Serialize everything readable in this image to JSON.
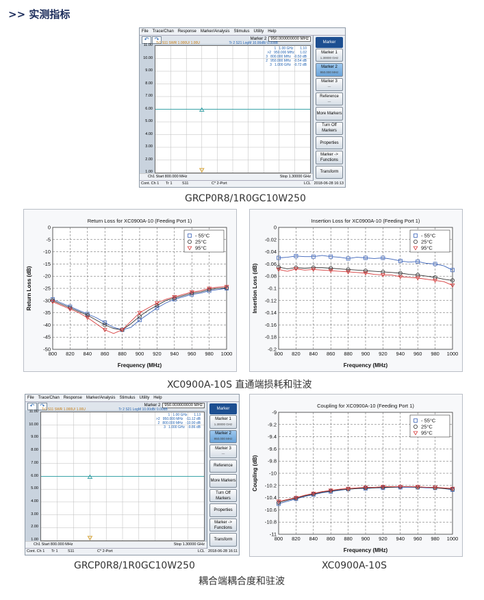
{
  "heading": ">> 实测指标",
  "vna_top": {
    "menu": [
      "File",
      "Trace/Chan",
      "Response",
      "Marker/Analysis",
      "Stimulus",
      "Utility",
      "Help"
    ],
    "marker_label": "Marker 2",
    "marker_value": "950.000000000 MHz",
    "trace1_header": "Tr1  S11 SWR 1.000U/ 1.00U",
    "trace2_header": "Tr 2  S21 LogM 10.00dB/ 0.00dB",
    "marker_table": "1   1.00 GHz       1.10\n>2   950.000 MHz      1.02\n3   800.000 MHz   -0.50 dB\n2   950.000 MHz   -0.54 dB\n3   1.000 GHz   -0.72 dB",
    "y_labels": [
      "11.00",
      "10.00",
      "9.00",
      "8.00",
      "7.00",
      "6.00",
      "5.00",
      "4.00",
      "3.00",
      "2.00",
      "1.00"
    ],
    "start": "Ch1  Start  800.000 MHz",
    "stop": "Stop  1.30000 GHz",
    "status_left": "Cont.  Ch 1",
    "status_tr": "Tr 1",
    "status_s": "S11",
    "status_port": "C* 2-Port",
    "status_lcl": "LCL",
    "status_time": "2018-06-28 16:13",
    "side_title": "Marker",
    "side_buttons": [
      {
        "label": "Marker 1",
        "sub": "1.30000 GHz"
      },
      {
        "label": "Marker 2",
        "sub": "950.000 MHz"
      },
      {
        "label": "Marker 3",
        "sub": "—"
      },
      {
        "label": "Reference",
        "sub": "—"
      },
      {
        "label": "More Markers",
        "sub": ""
      },
      {
        "label": "Turn Off Markers",
        "sub": ""
      },
      {
        "label": "Properties",
        "sub": ""
      },
      {
        "label": "Marker -> Functions",
        "sub": ""
      },
      {
        "label": "Transform",
        "sub": ""
      }
    ]
  },
  "vna_bottom": {
    "menu": [
      "File",
      "Trace/Chan",
      "Response",
      "Marker/Analysis",
      "Stimulus",
      "Utility",
      "Help"
    ],
    "marker_label": "Marker 2",
    "marker_value": "950.000000000 MHz",
    "trace1_header": "Tr1  S11 SWR 1.000U/ 1.00U",
    "trace2_header": "Tr 2  S21 LogM 10.00dB/ 0.00dB",
    "marker_table": "1   1.00 GHz       1.13\n>2   950.000 MHz   -11.12 dB\n2   800.000 MHz   -10.90 dB\n3   1.000 GHz   -9.86 dB",
    "y_labels": [
      "11.00",
      "10.00",
      "9.00",
      "8.00",
      "7.00",
      "6.00",
      "5.00",
      "4.00",
      "3.00",
      "2.00",
      "1.00"
    ],
    "start": "Ch1  Start  800.000 MHz",
    "stop": "Stop  1.30000 GHz",
    "status_left": "Cont.  Ch 1",
    "status_tr": "Tr 1",
    "status_s": "S11",
    "status_port": "C* 2-Port",
    "status_lcl": "LCL",
    "status_time": "2018-06-28 16:11",
    "side_title": "Marker",
    "side_buttons": [
      {
        "label": "Marker 1",
        "sub": "1.30000 GHz"
      },
      {
        "label": "Marker 2",
        "sub": "950.000 MHz"
      },
      {
        "label": "Marker 3",
        "sub": "—"
      },
      {
        "label": "Reference",
        "sub": ""
      },
      {
        "label": "More Markers",
        "sub": ""
      },
      {
        "label": "Turn Off Markers",
        "sub": ""
      },
      {
        "label": "Properties",
        "sub": ""
      },
      {
        "label": "Marker -> Functions",
        "sub": ""
      },
      {
        "label": "Transform",
        "sub": ""
      }
    ]
  },
  "captions": {
    "top": "GRCP0R8/1R0GC10W250",
    "middle": "XC0900A-10S 直通端损耗和驻波",
    "bottom_left": "GRCP0R8/1R0GC10W250",
    "bottom_right": "XC0900A-10S",
    "bottom_center": "耦合端耦合度和驻波"
  },
  "colors": {
    "blue": "#3a62b8",
    "black": "#333333",
    "red": "#d63a3a",
    "vna_trace": "#3aa3a8",
    "heading": "#1a2b5a"
  },
  "chart_data": [
    {
      "type": "line",
      "title": "Return Loss for XC0900A-10 (Feeding Port 1)",
      "xlabel": "Frequency (MHz)",
      "ylabel": "Return Loss (dB)",
      "xlim": [
        800,
        1000
      ],
      "ylim": [
        -50,
        0
      ],
      "xticks": [
        800,
        820,
        840,
        860,
        880,
        900,
        920,
        940,
        960,
        980,
        1000
      ],
      "yticks": [
        0,
        -5,
        -10,
        -15,
        -20,
        -25,
        -30,
        -35,
        -40,
        -45,
        -50
      ],
      "legend_position": "top-right",
      "grid": true,
      "x": [
        800,
        810,
        820,
        830,
        840,
        850,
        860,
        870,
        880,
        890,
        900,
        910,
        920,
        930,
        940,
        950,
        960,
        970,
        980,
        990,
        1000
      ],
      "series": [
        {
          "name": "- 55°C",
          "color": "#3a62b8",
          "marker": "square",
          "values": [
            -29.5,
            -31,
            -32.5,
            -34,
            -35.5,
            -37,
            -39,
            -41,
            -42,
            -41,
            -38,
            -35.5,
            -33,
            -31,
            -29.5,
            -28.5,
            -27.5,
            -27,
            -26,
            -25.5,
            -25
          ]
        },
        {
          "name": "25°C",
          "color": "#333333",
          "marker": "circle",
          "values": [
            -30,
            -31.5,
            -33,
            -34.5,
            -36,
            -38,
            -40,
            -41.5,
            -42,
            -39.5,
            -36.5,
            -34,
            -32,
            -30,
            -29,
            -28,
            -27,
            -26.5,
            -25.5,
            -25,
            -24.8
          ]
        },
        {
          "name": "95°C",
          "color": "#d63a3a",
          "marker": "triangle",
          "values": [
            -30.5,
            -32,
            -33.5,
            -35,
            -37,
            -39.5,
            -42,
            -43.5,
            -42,
            -38.5,
            -35,
            -33,
            -31,
            -29.5,
            -28.5,
            -27.5,
            -26.5,
            -26,
            -25,
            -24.5,
            -24.3
          ]
        }
      ]
    },
    {
      "type": "line",
      "title": "Insertion Loss for XC0900A-10 (Feeding Port 1)",
      "xlabel": "Frequency (MHz)",
      "ylabel": "Insertion Loss (dB)",
      "xlim": [
        800,
        1000
      ],
      "ylim": [
        -0.2,
        0
      ],
      "xticks": [
        800,
        820,
        840,
        860,
        880,
        900,
        920,
        940,
        960,
        980,
        1000
      ],
      "yticks": [
        0,
        -0.02,
        -0.04,
        -0.06,
        -0.08,
        -0.1,
        -0.12,
        -0.14,
        -0.16,
        -0.18,
        -0.2
      ],
      "legend_position": "top-right",
      "grid": true,
      "x": [
        800,
        810,
        820,
        830,
        840,
        850,
        860,
        870,
        880,
        890,
        900,
        910,
        920,
        930,
        940,
        950,
        960,
        970,
        980,
        990,
        1000
      ],
      "series": [
        {
          "name": "- 55°C",
          "color": "#3a62b8",
          "marker": "square",
          "values": [
            -0.05,
            -0.049,
            -0.047,
            -0.048,
            -0.048,
            -0.046,
            -0.048,
            -0.049,
            -0.051,
            -0.049,
            -0.05,
            -0.051,
            -0.05,
            -0.052,
            -0.055,
            -0.057,
            -0.056,
            -0.059,
            -0.06,
            -0.063,
            -0.07
          ]
        },
        {
          "name": "25°C",
          "color": "#333333",
          "marker": "circle",
          "values": [
            -0.065,
            -0.068,
            -0.066,
            -0.067,
            -0.066,
            -0.066,
            -0.067,
            -0.068,
            -0.069,
            -0.07,
            -0.071,
            -0.072,
            -0.073,
            -0.074,
            -0.075,
            -0.077,
            -0.078,
            -0.08,
            -0.082,
            -0.085,
            -0.087
          ]
        },
        {
          "name": "95°C",
          "color": "#d63a3a",
          "marker": "triangle",
          "values": [
            -0.069,
            -0.072,
            -0.068,
            -0.07,
            -0.069,
            -0.07,
            -0.071,
            -0.072,
            -0.073,
            -0.074,
            -0.075,
            -0.077,
            -0.078,
            -0.078,
            -0.081,
            -0.082,
            -0.083,
            -0.085,
            -0.087,
            -0.089,
            -0.095
          ]
        }
      ]
    },
    {
      "type": "line",
      "title": "Coupling for XC0900A-10 (Feeding Port 1)",
      "xlabel": "Frequency (MHz)",
      "ylabel": "Coupling (dB)",
      "xlim": [
        800,
        1000
      ],
      "ylim": [
        -11,
        -9
      ],
      "xticks": [
        800,
        820,
        840,
        860,
        880,
        900,
        920,
        940,
        960,
        980,
        1000
      ],
      "yticks": [
        -9,
        -9.2,
        -9.4,
        -9.6,
        -9.8,
        -10,
        -10.2,
        -10.4,
        -10.6,
        -10.8,
        -11
      ],
      "legend_position": "top-right",
      "grid": true,
      "x": [
        800,
        810,
        820,
        830,
        840,
        850,
        860,
        870,
        880,
        890,
        900,
        910,
        920,
        930,
        940,
        950,
        960,
        970,
        980,
        990,
        1000
      ],
      "series": [
        {
          "name": "- 55°C",
          "color": "#3a62b8",
          "marker": "square",
          "values": [
            -10.5,
            -10.46,
            -10.42,
            -10.38,
            -10.35,
            -10.32,
            -10.3,
            -10.28,
            -10.26,
            -10.25,
            -10.25,
            -10.24,
            -10.24,
            -10.23,
            -10.23,
            -10.23,
            -10.23,
            -10.24,
            -10.24,
            -10.25,
            -10.27
          ]
        },
        {
          "name": "25°C",
          "color": "#333333",
          "marker": "circle",
          "values": [
            -10.48,
            -10.44,
            -10.41,
            -10.37,
            -10.34,
            -10.31,
            -10.29,
            -10.27,
            -10.26,
            -10.25,
            -10.24,
            -10.24,
            -10.23,
            -10.23,
            -10.22,
            -10.22,
            -10.23,
            -10.23,
            -10.24,
            -10.25,
            -10.26
          ]
        },
        {
          "name": "95°C",
          "color": "#d63a3a",
          "marker": "triangle",
          "values": [
            -10.46,
            -10.43,
            -10.4,
            -10.36,
            -10.33,
            -10.3,
            -10.28,
            -10.26,
            -10.25,
            -10.24,
            -10.23,
            -10.23,
            -10.22,
            -10.22,
            -10.22,
            -10.22,
            -10.22,
            -10.23,
            -10.23,
            -10.24,
            -10.25
          ]
        }
      ]
    }
  ]
}
